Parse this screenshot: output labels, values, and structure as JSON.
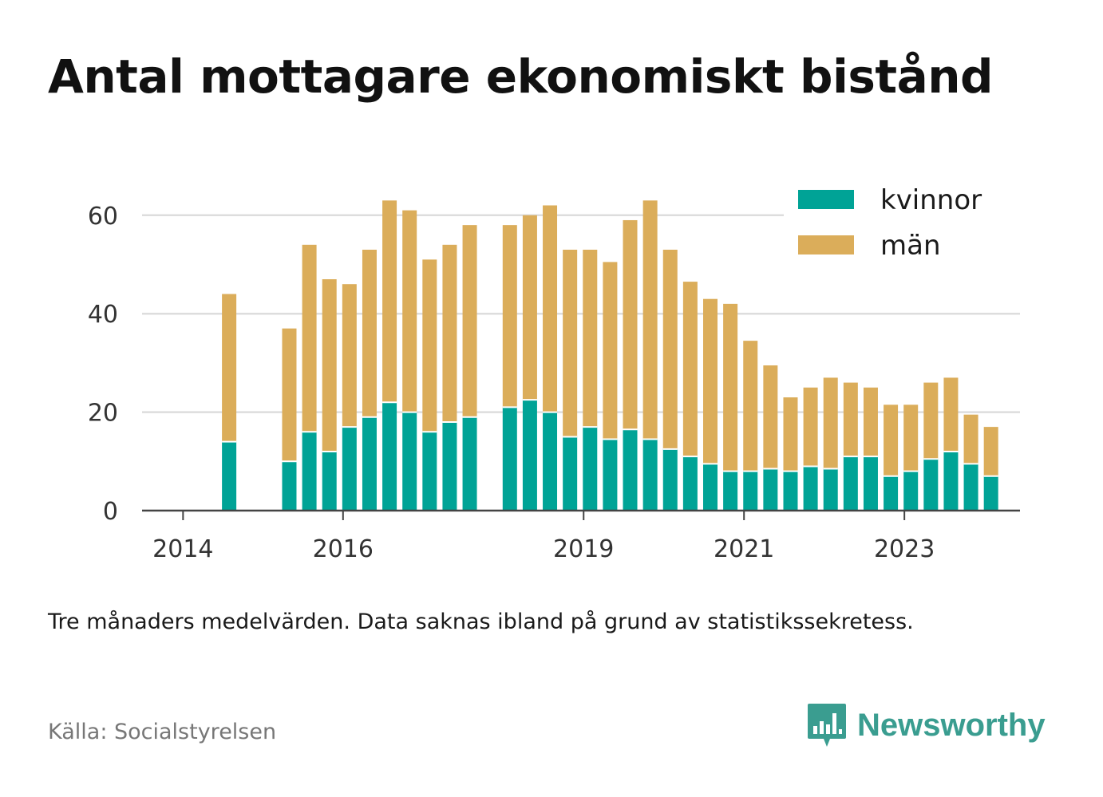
{
  "title": "Antal mottagare ekonomiskt bistånd",
  "subtitle": "Tre månaders medelvärden. Data saknas ibland på grund av statistikssekretess.",
  "source": "Källa: Socialstyrelsen",
  "logo": {
    "name": "Newsworthy",
    "icon": "bar-chart-speech-bubble-icon"
  },
  "colors": {
    "kvinnor": "#00a396",
    "man": "#dbad5a",
    "grid": "#dddddd",
    "axis": "#444444",
    "tick_label": "#333333"
  },
  "chart_data": {
    "type": "bar",
    "stacked": true,
    "xlabel": "",
    "ylabel": "",
    "ylim": [
      0,
      68
    ],
    "yticks": [
      0,
      20,
      40,
      60
    ],
    "grid": true,
    "legend_position": "top-right",
    "x_tick_labels": [
      {
        "label": "2014",
        "index": 0
      },
      {
        "label": "2016",
        "index": 8
      },
      {
        "label": "2019",
        "index": 20
      },
      {
        "label": "2021",
        "index": 28
      },
      {
        "label": "2023",
        "index": 36
      }
    ],
    "categories": [
      "2014 Q1",
      "2014 Q2",
      "2014 Q3",
      "2014 Q4",
      "2015 Q1",
      "2015 Q2",
      "2015 Q3",
      "2015 Q4",
      "2016 Q1",
      "2016 Q2",
      "2016 Q3",
      "2016 Q4",
      "2017 Q1",
      "2017 Q2",
      "2017 Q3",
      "2017 Q4",
      "2018 Q1",
      "2018 Q2",
      "2018 Q3",
      "2018 Q4",
      "2019 Q1",
      "2019 Q2",
      "2019 Q3",
      "2019 Q4",
      "2020 Q1",
      "2020 Q2",
      "2020 Q3",
      "2020 Q4",
      "2021 Q1",
      "2021 Q2",
      "2021 Q3",
      "2021 Q4",
      "2022 Q1",
      "2022 Q2",
      "2022 Q3",
      "2022 Q4",
      "2023 Q1",
      "2023 Q2",
      "2023 Q3",
      "2023 Q4"
    ],
    "series": [
      {
        "name": "kvinnor",
        "values": [
          null,
          14,
          null,
          null,
          10,
          16,
          12,
          17,
          19,
          22,
          20,
          16,
          18,
          19,
          null,
          21,
          22.5,
          20,
          15,
          17,
          14.5,
          16.5,
          14.5,
          12.5,
          11,
          9.5,
          8,
          8,
          8.5,
          8,
          9,
          8.5,
          11,
          11,
          7,
          8,
          10.5,
          12,
          9.5,
          7
        ]
      },
      {
        "name": "män",
        "values": [
          null,
          30,
          null,
          null,
          27,
          38,
          35,
          29,
          34,
          41,
          41,
          35,
          36,
          39,
          null,
          37,
          37.5,
          42,
          38,
          36,
          36,
          42.5,
          48.5,
          40.5,
          35.5,
          33.5,
          34,
          26.5,
          21,
          15,
          16,
          18.5,
          15,
          14,
          14.5,
          13.5,
          15.5,
          15,
          10,
          10
        ]
      }
    ]
  }
}
